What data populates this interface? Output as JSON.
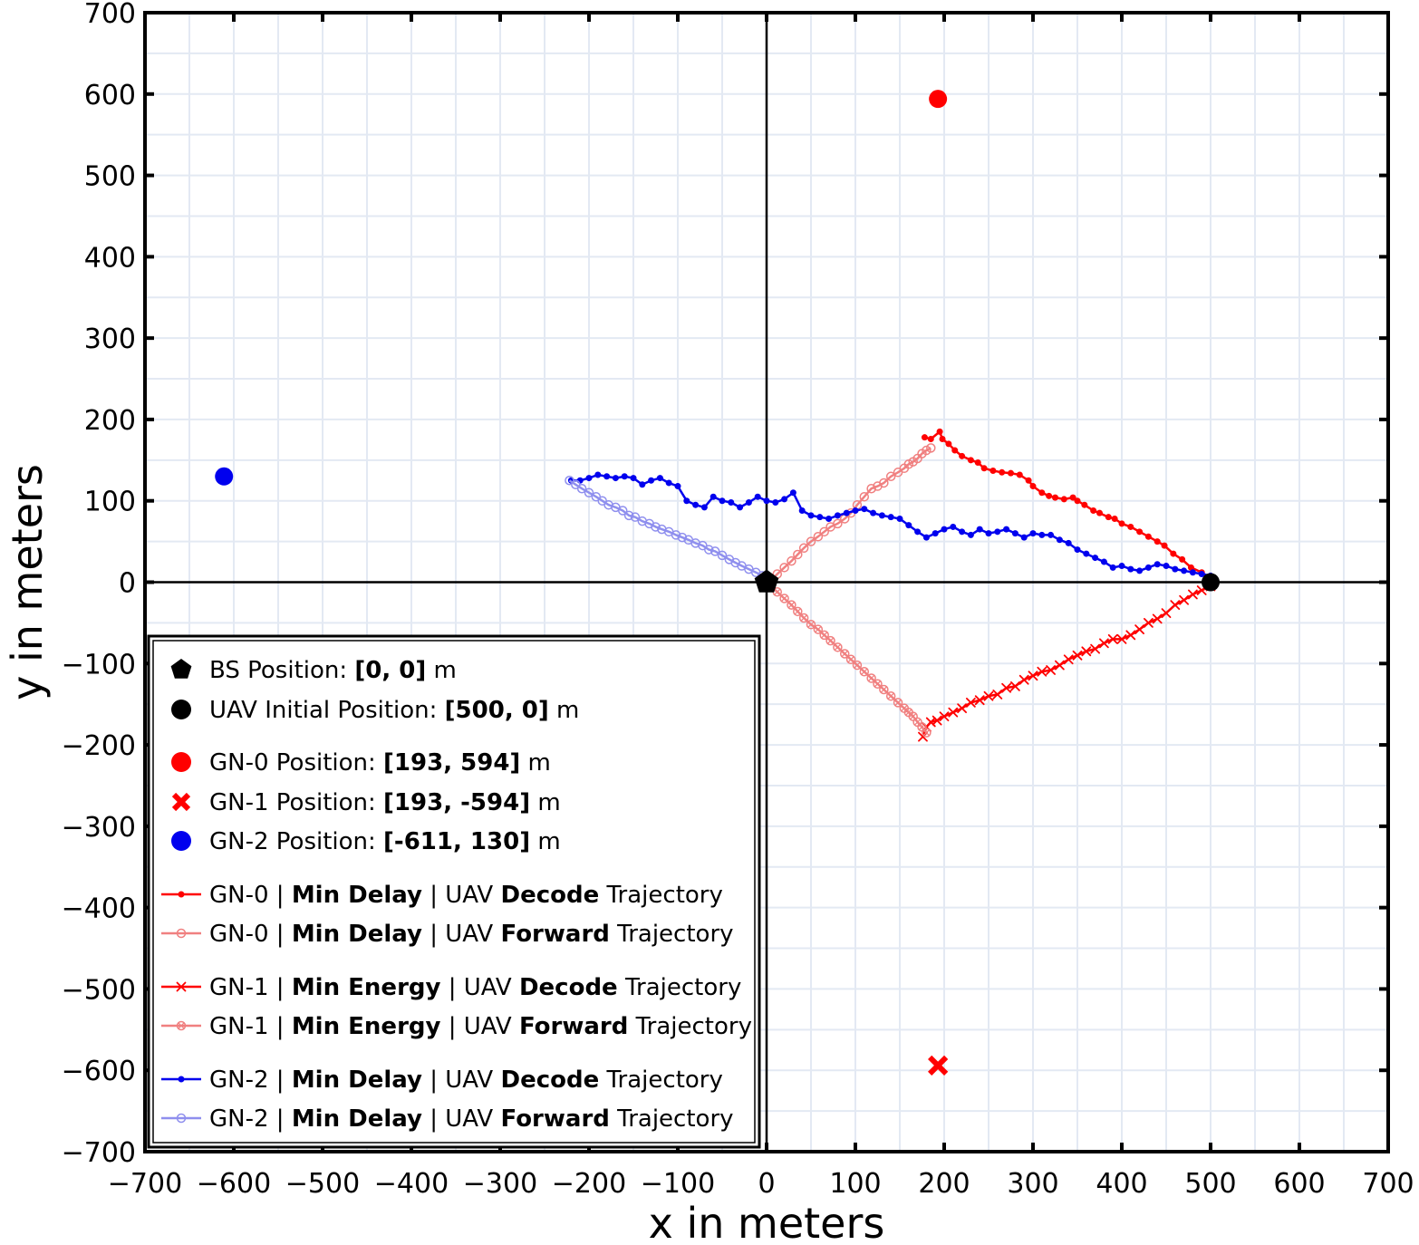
{
  "chart_data": {
    "type": "scatter",
    "xlabel": "x in meters",
    "ylabel": "y in meters",
    "xlim": [
      -700,
      700
    ],
    "ylim": [
      -700,
      700
    ],
    "xticks": [
      -700,
      -600,
      -500,
      -400,
      -300,
      -200,
      -100,
      0,
      100,
      200,
      300,
      400,
      500,
      600,
      700
    ],
    "yticks": [
      -700,
      -600,
      -500,
      -400,
      -300,
      -200,
      -100,
      0,
      100,
      200,
      300,
      400,
      500,
      600,
      700
    ],
    "grid": true,
    "legend_position": "bottom-left",
    "colors": {
      "red": "#ff0000",
      "light_red": "#f08080",
      "blue": "#0000ee",
      "light_blue": "#8f8fee",
      "black": "#000000"
    },
    "points": [
      {
        "label_parts": [
          {
            "t": "BS Position: "
          },
          {
            "t": "[0, 0]",
            "b": true
          },
          {
            "t": " m"
          }
        ],
        "x": 0,
        "y": 0,
        "marker": "pentagon",
        "color": "#000000"
      },
      {
        "label_parts": [
          {
            "t": "UAV Initial Position: "
          },
          {
            "t": "[500, 0]",
            "b": true
          },
          {
            "t": " m"
          }
        ],
        "x": 500,
        "y": 0,
        "marker": "circle",
        "color": "#000000"
      },
      {
        "label_parts": [
          {
            "t": "GN-0 Position: "
          },
          {
            "t": "[193, 594]",
            "b": true
          },
          {
            "t": " m"
          }
        ],
        "x": 193,
        "y": 594,
        "marker": "circle",
        "color": "#ff0000"
      },
      {
        "label_parts": [
          {
            "t": "GN-1 Position: "
          },
          {
            "t": "[193, -594]",
            "b": true
          },
          {
            "t": " m"
          }
        ],
        "x": 193,
        "y": -594,
        "marker": "x",
        "color": "#ff0000"
      },
      {
        "label_parts": [
          {
            "t": "GN-2 Position: "
          },
          {
            "t": "[-611, 130]",
            "b": true
          },
          {
            "t": " m"
          }
        ],
        "x": -611,
        "y": 130,
        "marker": "circle",
        "color": "#0000ee"
      }
    ],
    "series": [
      {
        "label_parts": [
          {
            "t": "GN-0 | "
          },
          {
            "t": "Min Delay",
            "b": true
          },
          {
            "t": " | UAV "
          },
          {
            "t": "Decode",
            "b": true
          },
          {
            "t": " Trajectory"
          }
        ],
        "color": "#ff0000",
        "marker": "dot",
        "x": [
          500,
          490,
          478,
          468,
          458,
          448,
          440,
          430,
          420,
          410,
          400,
          392,
          385,
          375,
          368,
          358,
          350,
          345,
          335,
          325,
          318,
          310,
          300,
          295,
          285,
          275,
          265,
          255,
          245,
          238,
          230,
          220,
          212,
          205,
          198,
          195,
          185,
          178
        ],
        "y": [
          5,
          12,
          18,
          28,
          35,
          45,
          50,
          56,
          62,
          68,
          72,
          78,
          80,
          85,
          88,
          95,
          100,
          104,
          102,
          104,
          106,
          110,
          118,
          125,
          132,
          134,
          135,
          137,
          140,
          147,
          150,
          155,
          162,
          170,
          176,
          185,
          176,
          178
        ]
      },
      {
        "label_parts": [
          {
            "t": "GN-0 | "
          },
          {
            "t": "Min Delay",
            "b": true
          },
          {
            "t": " | UAV "
          },
          {
            "t": "Forward",
            "b": true
          },
          {
            "t": " Trajectory"
          }
        ],
        "color": "#f08080",
        "marker": "ring",
        "x": [
          5,
          12,
          20,
          28,
          35,
          42,
          50,
          58,
          65,
          72,
          80,
          88,
          95,
          102,
          110,
          118,
          125,
          132,
          140,
          148,
          155,
          160,
          165,
          170,
          175,
          180,
          185
        ],
        "y": [
          2,
          10,
          18,
          26,
          34,
          42,
          50,
          56,
          62,
          68,
          72,
          78,
          85,
          95,
          105,
          115,
          118,
          122,
          130,
          135,
          140,
          145,
          148,
          152,
          158,
          162,
          165
        ]
      },
      {
        "label_parts": [
          {
            "t": "GN-1 | "
          },
          {
            "t": "Min Energy",
            "b": true
          },
          {
            "t": " | UAV "
          },
          {
            "t": "Decode",
            "b": true
          },
          {
            "t": " Trajectory"
          }
        ],
        "color": "#ff0000",
        "marker": "cross",
        "x": [
          500,
          490,
          480,
          470,
          460,
          450,
          440,
          430,
          420,
          410,
          400,
          390,
          380,
          370,
          360,
          350,
          340,
          330,
          320,
          310,
          300,
          290,
          280,
          270,
          260,
          250,
          240,
          230,
          220,
          210,
          200,
          192,
          185,
          180,
          176
        ],
        "y": [
          -5,
          -10,
          -15,
          -22,
          -28,
          -38,
          -45,
          -50,
          -58,
          -65,
          -70,
          -70,
          -75,
          -82,
          -85,
          -90,
          -95,
          -102,
          -108,
          -110,
          -115,
          -120,
          -128,
          -130,
          -138,
          -140,
          -145,
          -148,
          -155,
          -160,
          -165,
          -170,
          -172,
          -178,
          -190
        ]
      },
      {
        "label_parts": [
          {
            "t": "GN-1 | "
          },
          {
            "t": "Min Energy",
            "b": true
          },
          {
            "t": " | UAV "
          },
          {
            "t": "Forward",
            "b": true
          },
          {
            "t": " Trajectory"
          }
        ],
        "color": "#f08080",
        "marker": "ringx",
        "x": [
          5,
          12,
          20,
          28,
          35,
          42,
          50,
          58,
          65,
          72,
          80,
          88,
          95,
          102,
          110,
          118,
          125,
          132,
          140,
          148,
          155,
          160,
          165,
          170,
          175,
          180
        ],
        "y": [
          -5,
          -12,
          -20,
          -28,
          -36,
          -44,
          -52,
          -58,
          -65,
          -72,
          -80,
          -88,
          -95,
          -102,
          -110,
          -118,
          -125,
          -132,
          -140,
          -148,
          -155,
          -160,
          -165,
          -172,
          -178,
          -185
        ]
      },
      {
        "label_parts": [
          {
            "t": "GN-2 | "
          },
          {
            "t": "Min Delay",
            "b": true
          },
          {
            "t": " | UAV "
          },
          {
            "t": "Decode",
            "b": true
          },
          {
            "t": " Trajectory"
          }
        ],
        "color": "#0000ee",
        "marker": "dot",
        "x": [
          500,
          490,
          480,
          470,
          460,
          450,
          440,
          430,
          420,
          410,
          400,
          390,
          380,
          370,
          360,
          350,
          340,
          330,
          320,
          310,
          300,
          290,
          280,
          270,
          260,
          250,
          240,
          230,
          220,
          210,
          200,
          190,
          180,
          170,
          160,
          150,
          140,
          130,
          120,
          110,
          100,
          90,
          80,
          70,
          60,
          50,
          40,
          30,
          20,
          10,
          0,
          -10,
          -20,
          -30,
          -40,
          -50,
          -60,
          -70,
          -80,
          -90,
          -100,
          -110,
          -120,
          -130,
          -140,
          -150,
          -160,
          -170,
          -180,
          -190,
          -200,
          -210,
          -220
        ],
        "y": [
          8,
          10,
          12,
          14,
          16,
          20,
          22,
          18,
          14,
          16,
          20,
          18,
          25,
          30,
          35,
          40,
          48,
          52,
          58,
          58,
          60,
          55,
          60,
          65,
          62,
          60,
          65,
          58,
          62,
          68,
          65,
          60,
          55,
          62,
          70,
          78,
          80,
          82,
          85,
          90,
          88,
          85,
          82,
          78,
          80,
          82,
          88,
          110,
          102,
          98,
          100,
          105,
          98,
          92,
          98,
          100,
          105,
          92,
          95,
          100,
          118,
          122,
          128,
          125,
          120,
          128,
          130,
          128,
          130,
          132,
          128,
          125,
          125
        ]
      },
      {
        "label_parts": [
          {
            "t": "GN-2 | "
          },
          {
            "t": "Min Delay",
            "b": true
          },
          {
            "t": " | UAV "
          },
          {
            "t": "Forward",
            "b": true
          },
          {
            "t": " Trajectory"
          }
        ],
        "color": "#8f8fee",
        "marker": "ring",
        "x": [
          -5,
          -12,
          -20,
          -28,
          -35,
          -42,
          -50,
          -58,
          -65,
          -72,
          -80,
          -88,
          -95,
          -102,
          -110,
          -118,
          -125,
          -132,
          -140,
          -148,
          -155,
          -162,
          -170,
          -178,
          -185,
          -192,
          -200,
          -208,
          -215,
          -222
        ],
        "y": [
          8,
          12,
          16,
          20,
          24,
          28,
          33,
          38,
          40,
          45,
          48,
          52,
          55,
          58,
          62,
          65,
          68,
          72,
          75,
          80,
          82,
          88,
          92,
          95,
          100,
          105,
          110,
          115,
          120,
          125
        ]
      }
    ]
  }
}
